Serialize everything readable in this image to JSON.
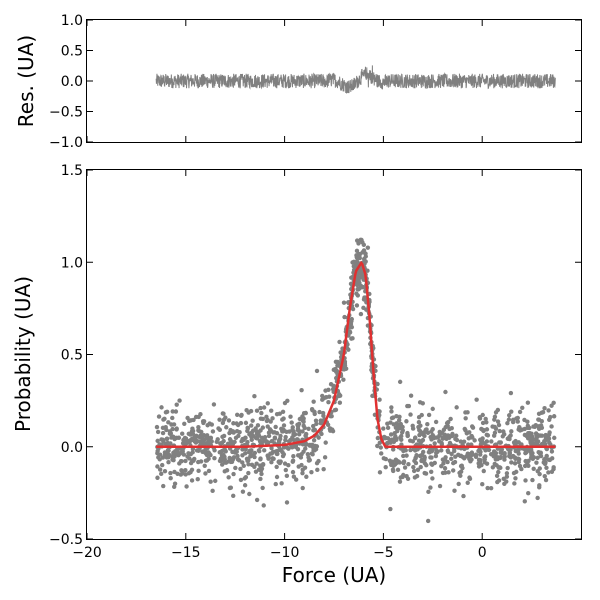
{
  "chart_data": [
    {
      "id": "residuals",
      "type": "line",
      "title": "",
      "xlabel": "",
      "ylabel": "Res. (UA)",
      "xlim": [
        -20,
        5
      ],
      "ylim": [
        -1.0,
        1.0
      ],
      "yticks": [
        -1.0,
        -0.5,
        0.0,
        0.5,
        1.0
      ],
      "ytick_labels": [
        "−1.0",
        "−0.5",
        "0.0",
        "0.5",
        "1.0"
      ],
      "xtick_labels_visible": false,
      "grid": false,
      "series": [
        {
          "name": "residuals",
          "color": "#808080",
          "description": "noisy residual trace",
          "x_range": [
            -16.5,
            3.7
          ],
          "noise_amplitude": 0.12,
          "features": [
            {
              "x": -7.2,
              "dy": 0.08
            },
            {
              "x": -6.8,
              "dy": 0.1
            },
            {
              "x": -5.7,
              "dy": 0.45
            },
            {
              "x": -5.5,
              "dy": -0.55
            }
          ]
        }
      ]
    },
    {
      "id": "distribution",
      "type": "scatter",
      "title": "",
      "xlabel": "Force (UA)",
      "ylabel": "Probability (UA)",
      "xlim": [
        -20,
        5
      ],
      "ylim": [
        -0.5,
        1.5
      ],
      "xticks": [
        -20,
        -15,
        -10,
        -5,
        0
      ],
      "xtick_labels": [
        "−20",
        "−15",
        "−10",
        "−5",
        "0"
      ],
      "yticks": [
        -0.5,
        0.0,
        0.5,
        1.0,
        1.5
      ],
      "ytick_labels": [
        "−0.5",
        "0.0",
        "0.5",
        "1.0",
        "1.5"
      ],
      "grid": false,
      "series": [
        {
          "name": "data",
          "type": "scatter",
          "color": "#808080",
          "x_range": [
            -16.5,
            3.7
          ],
          "n_points": 1500,
          "noise_sd": 0.1,
          "peak_x": -6.2,
          "peak_y": 1.2
        },
        {
          "name": "fit",
          "type": "line",
          "color": "#e03030",
          "x_range": [
            -16.5,
            3.7
          ],
          "peak_x": -6.1,
          "peak_y": 1.0,
          "points": [
            [
              -16.5,
              0.0
            ],
            [
              -12.0,
              0.0
            ],
            [
              -10.0,
              0.01
            ],
            [
              -9.0,
              0.03
            ],
            [
              -8.5,
              0.06
            ],
            [
              -8.0,
              0.12
            ],
            [
              -7.5,
              0.25
            ],
            [
              -7.0,
              0.5
            ],
            [
              -6.7,
              0.75
            ],
            [
              -6.4,
              0.95
            ],
            [
              -6.1,
              1.0
            ],
            [
              -5.9,
              0.93
            ],
            [
              -5.7,
              0.7
            ],
            [
              -5.5,
              0.4
            ],
            [
              -5.3,
              0.15
            ],
            [
              -5.1,
              0.04
            ],
            [
              -4.9,
              0.0
            ],
            [
              3.7,
              0.0
            ]
          ]
        }
      ]
    }
  ]
}
